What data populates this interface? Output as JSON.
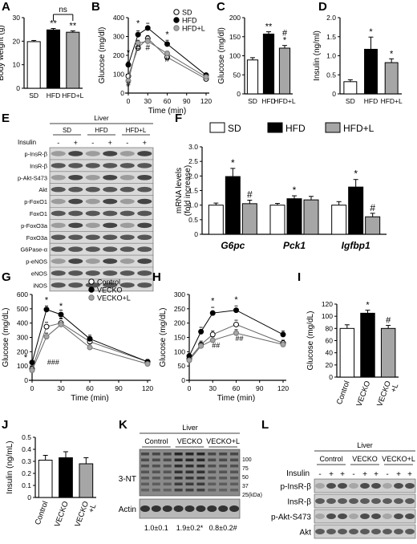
{
  "colors": {
    "sd": "#ffffff",
    "hfd": "#000000",
    "hfdl": "#a6a6a6",
    "blot_dark": "#2a2a2a",
    "blot_bg": "#d9d9d9"
  },
  "panels": {
    "A": {
      "letter": "A"
    },
    "B": {
      "letter": "B"
    },
    "C": {
      "letter": "C"
    },
    "D": {
      "letter": "D"
    },
    "E": {
      "letter": "E"
    },
    "F": {
      "letter": "F"
    },
    "G": {
      "letter": "G"
    },
    "H": {
      "letter": "H"
    },
    "I": {
      "letter": "I"
    },
    "J": {
      "letter": "J"
    },
    "K": {
      "letter": "K"
    },
    "L": {
      "letter": "L"
    }
  },
  "blotE": {
    "tissue": "Liver",
    "groups": [
      "SD",
      "HFD",
      "HFD+L"
    ],
    "insulin_label": "Insulin",
    "insulin_signs": [
      "-",
      "+",
      "-",
      "+",
      "-",
      "+"
    ],
    "rows": [
      "p-InsR-β",
      "InsR-β",
      "p-Akt-S473",
      "Akt",
      "p-FoxO1",
      "FoxO1",
      "p-FoxO3a",
      "FoxO3a",
      "G6Pase-α",
      "p-eNOS",
      "eNOS",
      "iNOS"
    ]
  },
  "blotK": {
    "tissue": "Liver",
    "groups": [
      "Control",
      "VECKO",
      "VECKO+L"
    ],
    "row_top": "3-NT",
    "row_bottom": "Actin",
    "markers": [
      "100",
      "75",
      "50",
      "37",
      "25(kDa)"
    ],
    "quant": [
      "1.0±0.1",
      "1.9±0.2*",
      "0.8±0.2#"
    ]
  },
  "blotL": {
    "tissue": "Liver",
    "groups": [
      "Control",
      "VECKO",
      "VECKO+L"
    ],
    "insulin_label": "Insulin",
    "insulin_signs": [
      "-",
      "+",
      "+",
      "-",
      "+",
      "+",
      "-",
      "+",
      "+"
    ],
    "rows": [
      "p-InsR-β",
      "InsR-β",
      "p-Akt-S473",
      "Akt"
    ]
  },
  "chart_data": [
    {
      "panel": "A",
      "type": "bar",
      "categories": [
        "SD",
        "HFD",
        "HFD+L"
      ],
      "values": [
        19.8,
        24.8,
        23.8
      ],
      "errors": [
        0.5,
        0.6,
        0.6
      ],
      "ylabel": "Body weight (g)",
      "ylim": [
        0,
        30
      ],
      "yticks": [
        0,
        10,
        20,
        30
      ],
      "annotations": [
        "",
        "**",
        "**"
      ],
      "bracket": "ns"
    },
    {
      "panel": "B",
      "type": "line",
      "x": [
        0,
        15,
        30,
        60,
        120
      ],
      "xlabel": "Time (min)",
      "ylabel": "Glucose (mg/dl)",
      "ylim": [
        0,
        400
      ],
      "yticks": [
        0,
        100,
        200,
        300,
        400
      ],
      "xticks": [
        0,
        30,
        60,
        90,
        120
      ],
      "series": [
        {
          "name": "SD",
          "values": [
            90,
            240,
            290,
            190,
            75
          ],
          "errors": [
            8,
            15,
            15,
            12,
            8
          ]
        },
        {
          "name": "HFD",
          "values": [
            150,
            310,
            345,
            260,
            95
          ],
          "errors": [
            15,
            20,
            25,
            20,
            10
          ]
        },
        {
          "name": "HFD+L",
          "values": [
            65,
            265,
            275,
            210,
            85
          ],
          "errors": [
            8,
            15,
            15,
            12,
            8
          ]
        }
      ],
      "annotations": [
        "*",
        "*",
        "#",
        "#",
        "*",
        "#",
        "#"
      ]
    },
    {
      "panel": "C",
      "type": "bar",
      "categories": [
        "SD",
        "HFD",
        "HFD+L"
      ],
      "values": [
        89,
        157,
        120
      ],
      "errors": [
        6,
        6,
        7
      ],
      "ylabel": "Glucose (mg/dl)",
      "ylim": [
        0,
        200
      ],
      "yticks": [
        0,
        50,
        100,
        150,
        200
      ],
      "annotations": [
        "",
        "**",
        "#*"
      ]
    },
    {
      "panel": "D",
      "type": "bar",
      "categories": [
        "SD",
        "HFD",
        "HFD+L"
      ],
      "values": [
        0.32,
        1.17,
        0.82
      ],
      "errors": [
        0.05,
        0.32,
        0.1
      ],
      "ylabel": "Insulin (ng/ml)",
      "ylim": [
        0,
        2.0
      ],
      "yticks": [
        0,
        0.5,
        1.0,
        1.5,
        2.0
      ],
      "annotations": [
        "",
        "*",
        "*"
      ]
    },
    {
      "panel": "F",
      "type": "bar",
      "categories": [
        "G6pc",
        "Pck1",
        "Igfbp1"
      ],
      "series": [
        {
          "name": "SD",
          "values": [
            1.0,
            1.0,
            1.0
          ],
          "errors": [
            0.07,
            0.06,
            0.12
          ]
        },
        {
          "name": "HFD",
          "values": [
            1.98,
            1.22,
            1.62
          ],
          "errors": [
            0.28,
            0.1,
            0.26
          ]
        },
        {
          "name": "HFD+L",
          "values": [
            1.05,
            1.18,
            0.6
          ],
          "errors": [
            0.12,
            0.12,
            0.12
          ]
        }
      ],
      "ylabel": "mRNA levels (fold increase)",
      "ylim": [
        0,
        3.0
      ],
      "yticks": [
        0,
        0.5,
        1.0,
        1.5,
        2.0,
        2.5,
        3.0
      ],
      "annotations": [
        "*",
        "#",
        "*",
        "*",
        "#"
      ]
    },
    {
      "panel": "G",
      "type": "line",
      "x": [
        0,
        15,
        30,
        60,
        120
      ],
      "xlabel": "Time (min)",
      "ylabel": "Glucose (mg/dL)",
      "ylim": [
        0,
        600
      ],
      "yticks": [
        0,
        100,
        200,
        300,
        400,
        500,
        600
      ],
      "xticks": [
        0,
        30,
        60,
        90,
        120
      ],
      "series": [
        {
          "name": "Control",
          "values": [
            80,
            375,
            400,
            270,
            130
          ],
          "errors": [
            10,
            30,
            30,
            25,
            15
          ]
        },
        {
          "name": "VECKO",
          "values": [
            125,
            495,
            460,
            290,
            130
          ],
          "errors": [
            10,
            25,
            30,
            25,
            15
          ]
        },
        {
          "name": "VECKO+L",
          "values": [
            70,
            305,
            390,
            230,
            115
          ],
          "errors": [
            10,
            25,
            45,
            25,
            15
          ]
        }
      ],
      "annotations": [
        "*",
        "*",
        "*",
        "###"
      ]
    },
    {
      "panel": "H",
      "type": "line",
      "x": [
        0,
        15,
        30,
        60,
        120
      ],
      "xlabel": "Time (min)",
      "ylabel": "Glucose (mg/dL)",
      "ylim": [
        0,
        300
      ],
      "yticks": [
        0,
        50,
        100,
        150,
        200,
        250,
        300
      ],
      "xticks": [
        0,
        30,
        60,
        90,
        120
      ],
      "series": [
        {
          "name": "Control",
          "values": [
            75,
            125,
            160,
            195,
            130
          ],
          "errors": [
            8,
            12,
            12,
            15,
            10
          ]
        },
        {
          "name": "VECKO",
          "values": [
            85,
            170,
            235,
            245,
            160
          ],
          "errors": [
            8,
            15,
            20,
            15,
            12
          ]
        },
        {
          "name": "VECKO+L",
          "values": [
            70,
            120,
            140,
            165,
            125
          ],
          "errors": [
            8,
            10,
            12,
            12,
            15
          ]
        }
      ],
      "annotations": [
        "*",
        "*",
        "##",
        "##"
      ]
    },
    {
      "panel": "I",
      "type": "bar",
      "categories": [
        "Control",
        "VECKO",
        "VECKO+L"
      ],
      "tick_labels": [
        [
          "Control"
        ],
        [
          "VECKO"
        ],
        [
          "VECKO",
          "+L"
        ]
      ],
      "values": [
        80,
        105,
        80
      ],
      "errors": [
        6,
        5,
        5
      ],
      "ylabel": "Glucose (mg/dL)",
      "ylim": [
        0,
        120
      ],
      "yticks": [
        0,
        20,
        40,
        60,
        80,
        100,
        120
      ],
      "annotations": [
        "",
        "*",
        "#"
      ]
    },
    {
      "panel": "J",
      "type": "bar",
      "categories": [
        "Control",
        "VECKO",
        "VECKO+L"
      ],
      "tick_labels": [
        [
          "Control"
        ],
        [
          "VECKO"
        ],
        [
          "VECKO",
          "+L"
        ]
      ],
      "values": [
        0.31,
        0.33,
        0.28
      ],
      "errors": [
        0.04,
        0.05,
        0.05
      ],
      "ylabel": "Insulin (ng/mL)",
      "ylim": [
        0,
        0.5
      ],
      "yticks": [
        0,
        0.1,
        0.2,
        0.3,
        0.4,
        0.5
      ]
    }
  ]
}
